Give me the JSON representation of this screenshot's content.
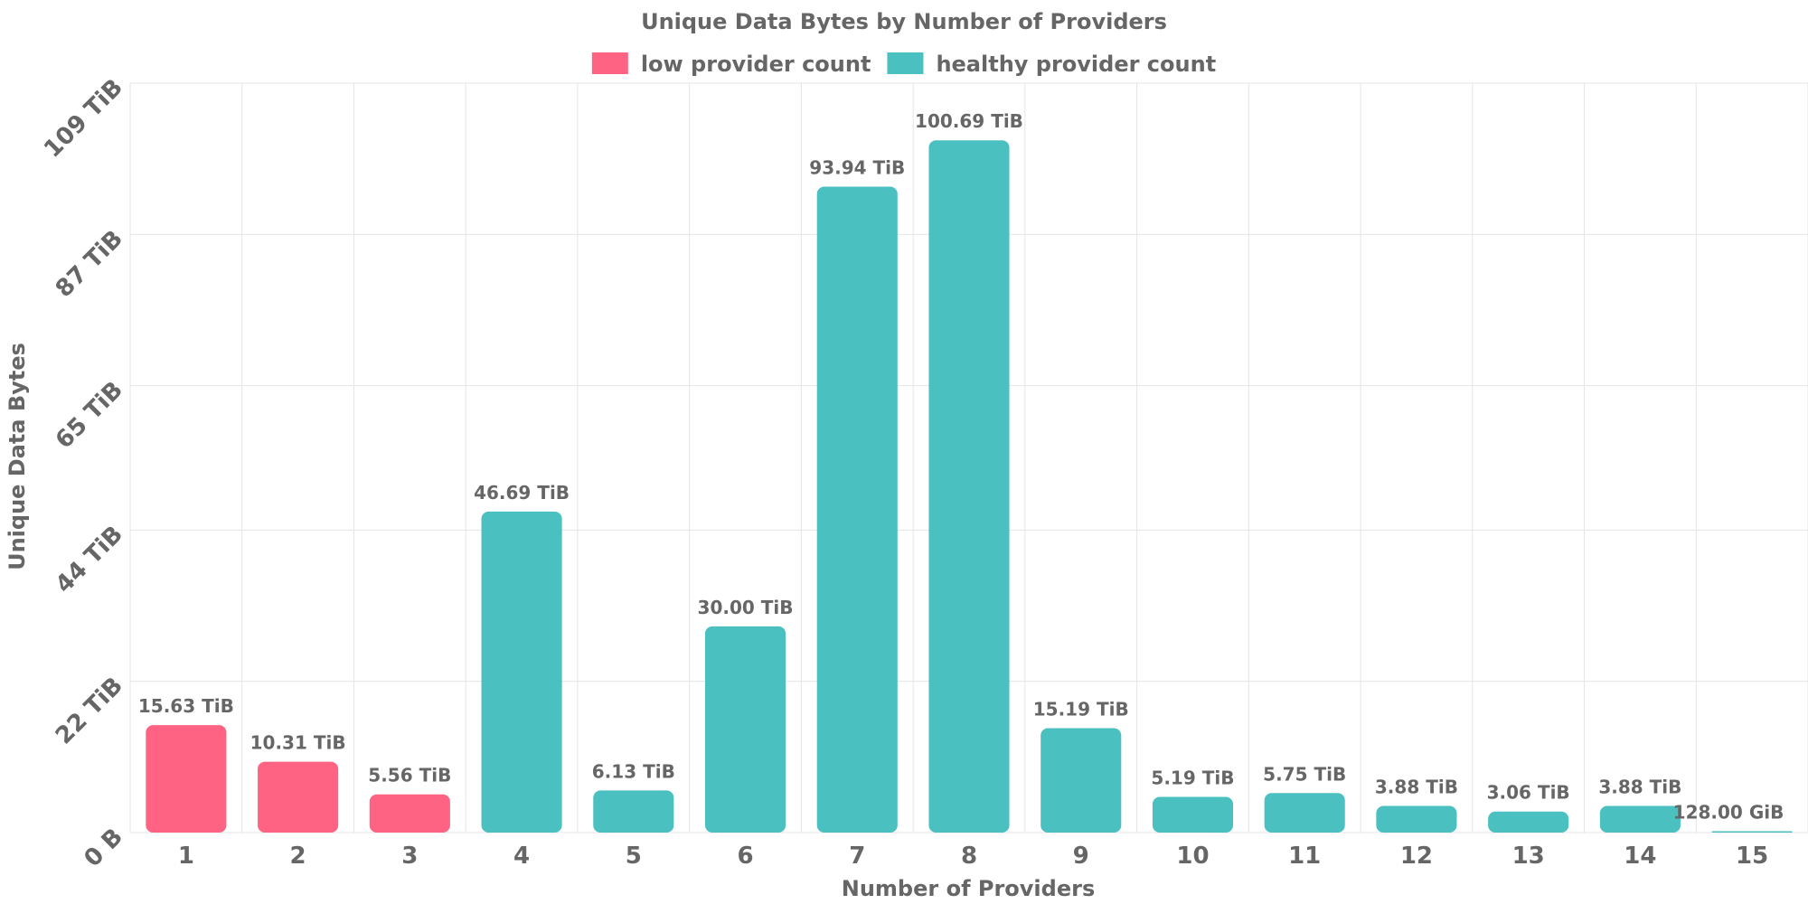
{
  "chart_data": {
    "type": "bar",
    "title": "Unique Data Bytes by Number of Providers",
    "xlabel": "Number of Providers",
    "ylabel": "Unique Data Bytes",
    "categories": [
      "1",
      "2",
      "3",
      "4",
      "5",
      "6",
      "7",
      "8",
      "9",
      "10",
      "11",
      "12",
      "13",
      "14",
      "15"
    ],
    "values": [
      15.63,
      10.31,
      5.56,
      46.69,
      6.13,
      30.0,
      93.94,
      100.69,
      15.19,
      5.19,
      5.75,
      3.88,
      3.06,
      3.88,
      0.125
    ],
    "value_unit": "TiB",
    "value_labels": [
      "15.63 TiB",
      "10.31 TiB",
      "5.56 TiB",
      "46.69 TiB",
      "6.13 TiB",
      "30.00 TiB",
      "93.94 TiB",
      "100.69 TiB",
      "15.19 TiB",
      "5.19 TiB",
      "5.75 TiB",
      "3.88 TiB",
      "3.06 TiB",
      "3.88 TiB",
      "128.00 GiB"
    ],
    "groups": [
      "low",
      "low",
      "low",
      "healthy",
      "healthy",
      "healthy",
      "healthy",
      "healthy",
      "healthy",
      "healthy",
      "healthy",
      "healthy",
      "healthy",
      "healthy",
      "healthy"
    ],
    "legend": [
      {
        "key": "low",
        "label": "low provider count",
        "color": "#ff6384"
      },
      {
        "key": "healthy",
        "label": "healthy provider count",
        "color": "#4bc0c0"
      }
    ],
    "legend_position": "top",
    "ylim": [
      0,
      109
    ],
    "yticks": [
      0,
      22,
      44,
      65,
      87,
      109
    ],
    "ytick_labels": [
      "0 B",
      "22 TiB",
      "44 TiB",
      "65 TiB",
      "87 TiB",
      "109 TiB"
    ],
    "grid": true
  }
}
